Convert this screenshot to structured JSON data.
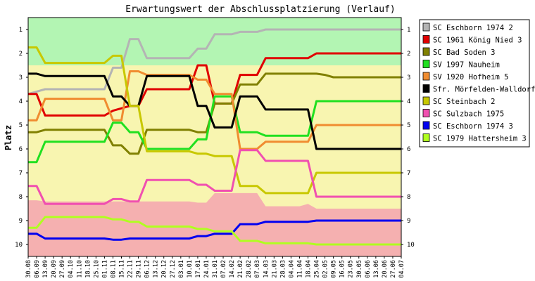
{
  "chart_data": {
    "type": "line",
    "title": "Erwartungswert der Abschlussplatzierung (Verlauf)",
    "ylabel": "Platz",
    "xlabel": "",
    "y_reversed": true,
    "ylim": [
      0.5,
      10.5
    ],
    "grid": false,
    "legend_position": "right",
    "y_ticks": [
      1,
      2,
      3,
      4,
      5,
      6,
      7,
      8,
      9,
      10
    ],
    "x": [
      "30.08",
      "06.09",
      "13.09",
      "20.09",
      "27.09",
      "04.10",
      "11.10",
      "18.10",
      "25.10",
      "01.11",
      "08.11",
      "15.11",
      "22.11",
      "29.11",
      "06.12",
      "13.12",
      "20.12",
      "27.12",
      "03.01",
      "10.01",
      "17.01",
      "24.01",
      "31.01",
      "07.02",
      "14.02",
      "21.02",
      "28.02",
      "07.03",
      "14.03",
      "21.03",
      "28.03",
      "04.04",
      "11.04",
      "18.04",
      "25.04",
      "02.05",
      "09.05",
      "16.05",
      "23.05",
      "30.05",
      "06.06",
      "13.06",
      "20.06",
      "27.06",
      "04.07"
    ],
    "x_labels": [
      "30.08",
      "06.09",
      "13.09",
      "20.09",
      "27.09",
      "04.10",
      "11.10",
      "18.10",
      "25.10",
      "01.11",
      "08.11",
      "15.11",
      "22.11",
      "29.11",
      "06.12",
      "13.12",
      "20.12",
      "27.12",
      "03.01",
      "10.01",
      "17.01",
      "24.01",
      "31.01",
      "07.02",
      "14.02",
      "21.02",
      "28.02",
      "07.03",
      "14.03",
      "21.03",
      "28.03",
      "04.04",
      "11.04",
      "18.04",
      "25.04",
      "02.05",
      "09.05",
      "16.05",
      "23.05",
      "30.05",
      "06.06",
      "13.06",
      "20.06",
      "27.06",
      "04.07"
    ],
    "bands": [
      {
        "name": "promotion",
        "from": 0.5,
        "to": 2.5,
        "color": "#b3f5b3"
      },
      {
        "name": "middle",
        "from": 2.5,
        "to": 8.2,
        "color": "#f8f5b0"
      },
      {
        "name": "relegation",
        "from": 8.2,
        "to": 10.5,
        "color": "#f5b0b0"
      }
    ],
    "band_edges": {
      "relegation_top": [
        8.15,
        8.15,
        8.2,
        8.2,
        8.2,
        8.2,
        8.2,
        8.2,
        8.2,
        8.2,
        8.2,
        8.2,
        8.2,
        8.2,
        8.2,
        8.2,
        8.2,
        8.2,
        8.2,
        8.2,
        8.25,
        8.25,
        7.85,
        7.85,
        7.85,
        7.85,
        7.85,
        7.85,
        8.4,
        8.4,
        8.4,
        8.4,
        8.4,
        8.3,
        8.5,
        8.5,
        8.5,
        8.5,
        8.5,
        8.5,
        8.5,
        8.5,
        8.5,
        8.5,
        8.5
      ]
    },
    "series": [
      {
        "name": "SC Eschborn 1974 2",
        "color": "#b4b4b4",
        "values": [
          3.7,
          3.6,
          3.5,
          3.5,
          3.5,
          3.5,
          3.5,
          3.5,
          3.5,
          3.5,
          2.6,
          2.6,
          1.4,
          1.4,
          2.2,
          2.2,
          2.2,
          2.2,
          2.2,
          2.2,
          1.8,
          1.8,
          1.2,
          1.2,
          1.2,
          1.1,
          1.1,
          1.1,
          1.0,
          1.0,
          1.0,
          1.0,
          1.0,
          1.0,
          1.0,
          1.0,
          1.0,
          1.0,
          1.0,
          1.0,
          1.0,
          1.0,
          1.0,
          1.0,
          1.0
        ]
      },
      {
        "name": "SC 1961 König Nied 3",
        "color": "#e00000",
        "values": [
          3.7,
          3.7,
          4.6,
          4.6,
          4.6,
          4.6,
          4.6,
          4.6,
          4.6,
          4.6,
          4.4,
          4.3,
          4.2,
          4.2,
          3.5,
          3.5,
          3.5,
          3.5,
          3.5,
          3.5,
          2.5,
          2.5,
          4.1,
          4.1,
          4.1,
          2.9,
          2.9,
          2.9,
          2.2,
          2.2,
          2.2,
          2.2,
          2.2,
          2.2,
          2.0,
          2.0,
          2.0,
          2.0,
          2.0,
          2.0,
          2.0,
          2.0,
          2.0,
          2.0,
          2.0
        ]
      },
      {
        "name": "SC Bad Soden 3",
        "color": "#808000",
        "values": [
          5.3,
          5.3,
          5.2,
          5.2,
          5.2,
          5.2,
          5.2,
          5.2,
          5.2,
          5.2,
          5.85,
          5.85,
          6.2,
          6.2,
          5.2,
          5.2,
          5.2,
          5.2,
          5.2,
          5.2,
          5.3,
          5.3,
          4.1,
          4.1,
          4.1,
          3.3,
          3.3,
          3.3,
          2.85,
          2.85,
          2.85,
          2.85,
          2.85,
          2.85,
          2.85,
          2.9,
          3.0,
          3.0,
          3.0,
          3.0,
          3.0,
          3.0,
          3.0,
          3.0,
          3.0
        ]
      },
      {
        "name": "SV 1997 Nauheim",
        "color": "#20e020",
        "values": [
          6.55,
          6.55,
          5.7,
          5.7,
          5.7,
          5.7,
          5.7,
          5.7,
          5.7,
          5.7,
          4.9,
          4.9,
          5.3,
          5.3,
          6.0,
          6.0,
          6.0,
          6.0,
          6.0,
          6.0,
          5.6,
          5.6,
          3.8,
          3.8,
          3.8,
          5.3,
          5.3,
          5.3,
          5.45,
          5.45,
          5.45,
          5.45,
          5.45,
          5.45,
          4.0,
          4.0,
          4.0,
          4.0,
          4.0,
          4.0,
          4.0,
          4.0,
          4.0,
          4.0,
          4.0
        ]
      },
      {
        "name": "SV 1920 Hofheim 5",
        "color": "#f08c30",
        "values": [
          4.8,
          4.8,
          3.9,
          3.9,
          3.9,
          3.9,
          3.9,
          3.9,
          3.9,
          3.9,
          4.8,
          4.8,
          2.75,
          2.75,
          2.9,
          2.9,
          2.9,
          2.9,
          2.9,
          2.9,
          3.1,
          3.1,
          3.7,
          3.7,
          3.7,
          6.0,
          6.0,
          6.0,
          5.7,
          5.7,
          5.7,
          5.7,
          5.7,
          5.7,
          5.0,
          5.0,
          5.0,
          5.0,
          5.0,
          5.0,
          5.0,
          5.0,
          5.0,
          5.0,
          5.0
        ]
      },
      {
        "name": "Sfr. Mörfelden-Walldorf",
        "color": "#000000",
        "values": [
          2.85,
          2.85,
          2.95,
          2.95,
          2.95,
          2.95,
          2.95,
          2.95,
          2.95,
          2.95,
          3.8,
          3.8,
          4.2,
          4.2,
          2.95,
          2.95,
          2.95,
          2.95,
          2.95,
          2.95,
          4.2,
          4.2,
          5.1,
          5.1,
          5.1,
          3.8,
          3.8,
          3.8,
          4.35,
          4.35,
          4.35,
          4.35,
          4.35,
          4.35,
          6.0,
          6.0,
          6.0,
          6.0,
          6.0,
          6.0,
          6.0,
          6.0,
          6.0,
          6.0,
          6.0
        ]
      },
      {
        "name": "SC Steinbach 2",
        "color": "#c8c800",
        "values": [
          1.75,
          1.75,
          2.4,
          2.4,
          2.4,
          2.4,
          2.4,
          2.4,
          2.4,
          2.4,
          2.1,
          2.1,
          4.2,
          4.2,
          6.1,
          6.1,
          6.1,
          6.1,
          6.1,
          6.1,
          6.2,
          6.2,
          6.3,
          6.3,
          6.3,
          7.55,
          7.55,
          7.55,
          7.85,
          7.85,
          7.85,
          7.85,
          7.85,
          7.85,
          7.0,
          7.0,
          7.0,
          7.0,
          7.0,
          7.0,
          7.0,
          7.0,
          7.0,
          7.0,
          7.0
        ]
      },
      {
        "name": "SC Sulzbach 1975",
        "color": "#f050b0",
        "values": [
          7.55,
          7.55,
          8.3,
          8.3,
          8.3,
          8.3,
          8.3,
          8.3,
          8.3,
          8.3,
          8.1,
          8.1,
          8.2,
          8.2,
          7.3,
          7.3,
          7.3,
          7.3,
          7.3,
          7.3,
          7.5,
          7.5,
          7.75,
          7.75,
          7.75,
          6.05,
          6.05,
          6.05,
          6.5,
          6.5,
          6.5,
          6.5,
          6.5,
          6.5,
          8.0,
          8.0,
          8.0,
          8.0,
          8.0,
          8.0,
          8.0,
          8.0,
          8.0,
          8.0,
          8.0
        ]
      },
      {
        "name": "SC Eschborn 1974 3",
        "color": "#0000f0",
        "values": [
          9.55,
          9.55,
          9.75,
          9.75,
          9.75,
          9.75,
          9.75,
          9.75,
          9.75,
          9.75,
          9.8,
          9.8,
          9.75,
          9.75,
          9.75,
          9.75,
          9.75,
          9.75,
          9.75,
          9.75,
          9.65,
          9.65,
          9.55,
          9.55,
          9.55,
          9.15,
          9.15,
          9.15,
          9.05,
          9.05,
          9.05,
          9.05,
          9.05,
          9.05,
          9.0,
          9.0,
          9.0,
          9.0,
          9.0,
          9.0,
          9.0,
          9.0,
          9.0,
          9.0,
          9.0
        ]
      },
      {
        "name": "SC 1979 Hattersheim 3",
        "color": "#b0ff20",
        "values": [
          9.3,
          9.3,
          8.85,
          8.85,
          8.85,
          8.85,
          8.85,
          8.85,
          8.85,
          8.85,
          8.95,
          8.95,
          9.05,
          9.05,
          9.25,
          9.25,
          9.25,
          9.25,
          9.25,
          9.25,
          9.35,
          9.35,
          9.45,
          9.45,
          9.45,
          9.85,
          9.85,
          9.85,
          9.95,
          9.95,
          9.95,
          9.95,
          9.95,
          9.95,
          10.0,
          10.0,
          10.0,
          10.0,
          10.0,
          10.0,
          10.0,
          10.0,
          10.0,
          10.0,
          10.0
        ]
      }
    ]
  }
}
